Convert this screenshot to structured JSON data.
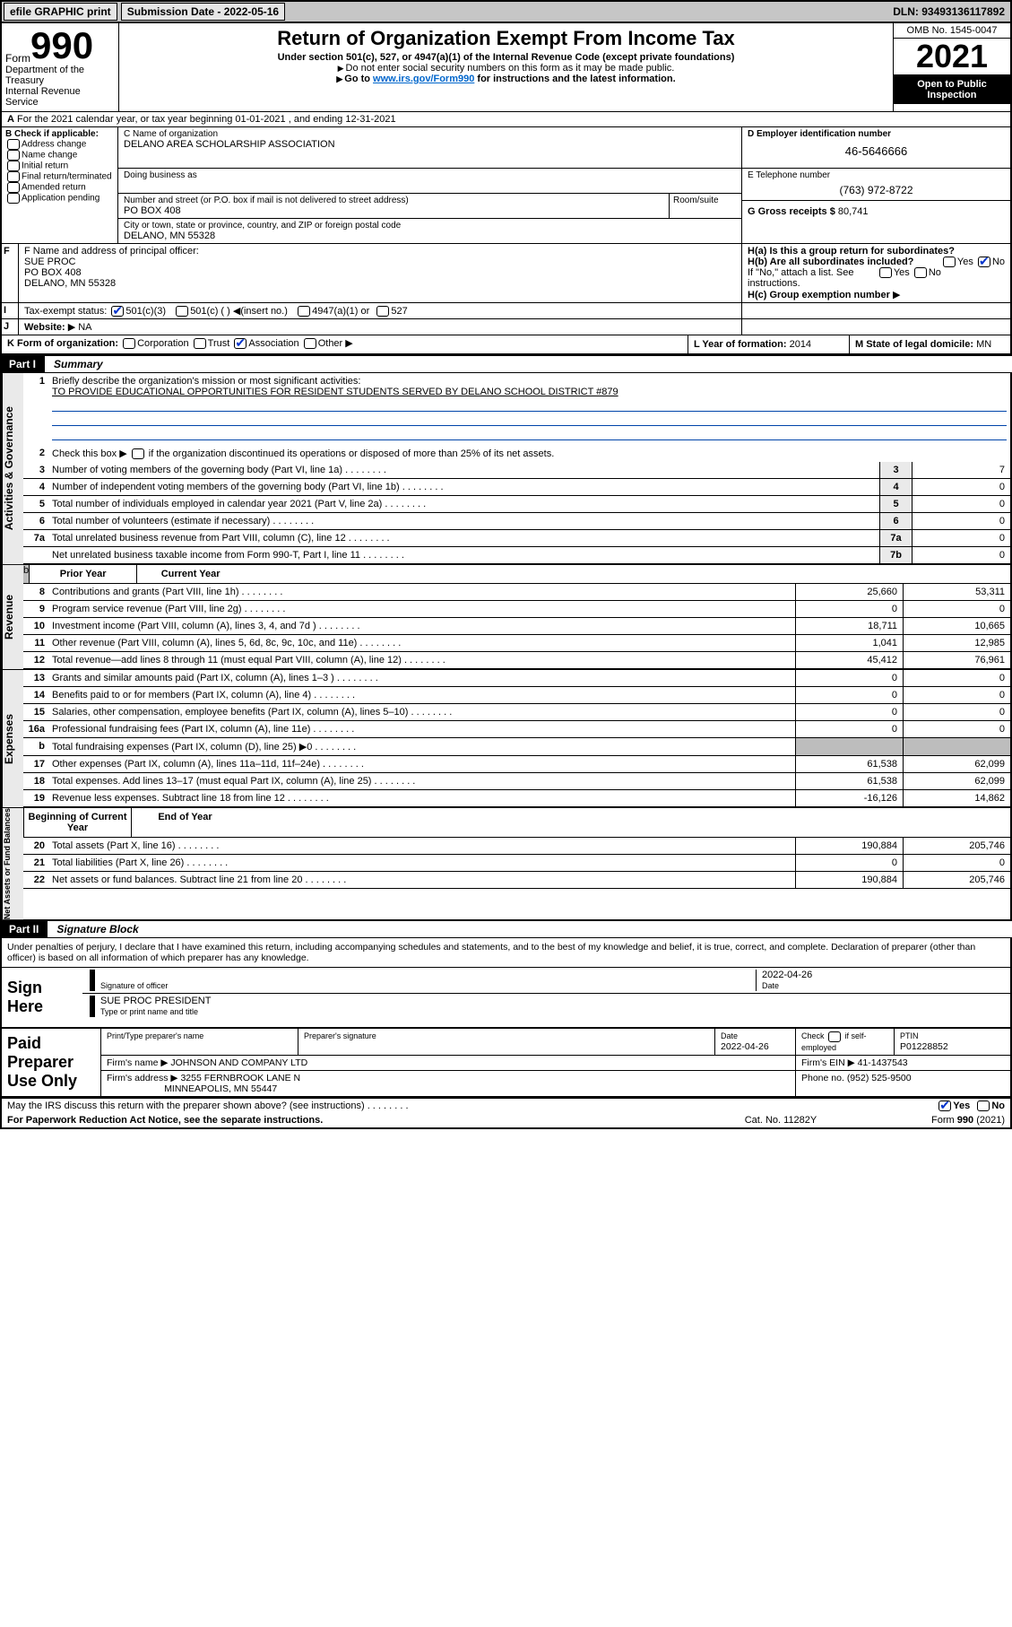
{
  "topbar": {
    "efile": "efile GRAPHIC print",
    "subdate_label": "Submission Date - 2022-05-16",
    "dln": "DLN: 93493136117892"
  },
  "header": {
    "form_label": "Form",
    "form_num": "990",
    "title": "Return of Organization Exempt From Income Tax",
    "sub": "Under section 501(c), 527, or 4947(a)(1) of the Internal Revenue Code (except private foundations)",
    "note1": "Do not enter social security numbers on this form as it may be made public.",
    "note2a": "Go to ",
    "note2_link": "www.irs.gov/Form990",
    "note2b": " for instructions and the latest information.",
    "dept1": "Department of the Treasury",
    "dept2": "Internal Revenue Service",
    "omb": "OMB No. 1545-0047",
    "year": "2021",
    "open": "Open to Public Inspection"
  },
  "A": {
    "text": "For the 2021 calendar year, or tax year beginning 01-01-2021   , and ending 12-31-2021"
  },
  "B": {
    "title": "B Check if applicable:",
    "items": [
      "Address change",
      "Name change",
      "Initial return",
      "Final return/terminated",
      "Amended return",
      "Application pending"
    ]
  },
  "C": {
    "name_label": "C Name of organization",
    "name": "DELANO AREA SCHOLARSHIP ASSOCIATION",
    "dba_label": "Doing business as",
    "street_label": "Number and street (or P.O. box if mail is not delivered to street address)",
    "street": "PO BOX 408",
    "room_label": "Room/suite",
    "city_label": "City or town, state or province, country, and ZIP or foreign postal code",
    "city": "DELANO, MN  55328"
  },
  "D": {
    "label": "D Employer identification number",
    "value": "46-5646666"
  },
  "E": {
    "label": "E Telephone number",
    "value": "(763) 972-8722"
  },
  "G": {
    "label": "G Gross receipts $",
    "value": "80,741"
  },
  "F": {
    "label": "F  Name and address of principal officer:",
    "l1": "SUE PROC",
    "l2": "PO BOX 408",
    "l3": "DELANO, MN  55328"
  },
  "H": {
    "a": "H(a)  Is this a group return for subordinates?",
    "b": "H(b)  Are all subordinates included?",
    "bno": "If \"No,\" attach a list. See instructions.",
    "c": "H(c)  Group exemption number"
  },
  "I": {
    "label": "Tax-exempt status:",
    "o1": "501(c)(3)",
    "o2": "501(c) (   ) ◀(insert no.)",
    "o3": "4947(a)(1) or",
    "o4": "527"
  },
  "J": {
    "label": "Website:",
    "value": "NA"
  },
  "K": {
    "label": "K Form of organization:",
    "o1": "Corporation",
    "o2": "Trust",
    "o3": "Association",
    "o4": "Other"
  },
  "L": {
    "label": "L Year of formation:",
    "value": "2014"
  },
  "M": {
    "label": "M State of legal domicile:",
    "value": "MN"
  },
  "part1": {
    "num": "Part I",
    "title": "Summary"
  },
  "q1": {
    "label": "Briefly describe the organization's mission or most significant activities:",
    "text": "TO PROVIDE EDUCATIONAL OPPORTUNITIES FOR RESIDENT STUDENTS SERVED BY DELANO SCHOOL DISTRICT #879"
  },
  "q2": "Check this box ▶        if the organization discontinued its operations or disposed of more than 25% of its net assets.",
  "rows_gov": [
    {
      "n": "3",
      "t": "Number of voting members of the governing body (Part VI, line 1a)",
      "b": "3",
      "v": "7"
    },
    {
      "n": "4",
      "t": "Number of independent voting members of the governing body (Part VI, line 1b)",
      "b": "4",
      "v": "0"
    },
    {
      "n": "5",
      "t": "Total number of individuals employed in calendar year 2021 (Part V, line 2a)",
      "b": "5",
      "v": "0"
    },
    {
      "n": "6",
      "t": "Total number of volunteers (estimate if necessary)",
      "b": "6",
      "v": "0"
    },
    {
      "n": "7a",
      "t": "Total unrelated business revenue from Part VIII, column (C), line 12",
      "b": "7a",
      "v": "0"
    },
    {
      "n": "",
      "t": "Net unrelated business taxable income from Form 990-T, Part I, line 11",
      "b": "7b",
      "v": "0"
    }
  ],
  "hdr_cols": {
    "prior": "Prior Year",
    "curr": "Current Year",
    "boy": "Beginning of Current Year",
    "eoy": "End of Year"
  },
  "rows_rev": [
    {
      "n": "8",
      "t": "Contributions and grants (Part VIII, line 1h)",
      "p": "25,660",
      "c": "53,311"
    },
    {
      "n": "9",
      "t": "Program service revenue (Part VIII, line 2g)",
      "p": "0",
      "c": "0"
    },
    {
      "n": "10",
      "t": "Investment income (Part VIII, column (A), lines 3, 4, and 7d )",
      "p": "18,711",
      "c": "10,665"
    },
    {
      "n": "11",
      "t": "Other revenue (Part VIII, column (A), lines 5, 6d, 8c, 9c, 10c, and 11e)",
      "p": "1,041",
      "c": "12,985"
    },
    {
      "n": "12",
      "t": "Total revenue—add lines 8 through 11 (must equal Part VIII, column (A), line 12)",
      "p": "45,412",
      "c": "76,961"
    }
  ],
  "rows_exp": [
    {
      "n": "13",
      "t": "Grants and similar amounts paid (Part IX, column (A), lines 1–3 )",
      "p": "0",
      "c": "0"
    },
    {
      "n": "14",
      "t": "Benefits paid to or for members (Part IX, column (A), line 4)",
      "p": "0",
      "c": "0"
    },
    {
      "n": "15",
      "t": "Salaries, other compensation, employee benefits (Part IX, column (A), lines 5–10)",
      "p": "0",
      "c": "0"
    },
    {
      "n": "16a",
      "t": "Professional fundraising fees (Part IX, column (A), line 11e)",
      "p": "0",
      "c": "0"
    },
    {
      "n": "b",
      "t": "Total fundraising expenses (Part IX, column (D), line 25) ▶0",
      "p": "",
      "c": "",
      "shade": true
    },
    {
      "n": "17",
      "t": "Other expenses (Part IX, column (A), lines 11a–11d, 11f–24e)",
      "p": "61,538",
      "c": "62,099"
    },
    {
      "n": "18",
      "t": "Total expenses. Add lines 13–17 (must equal Part IX, column (A), line 25)",
      "p": "61,538",
      "c": "62,099"
    },
    {
      "n": "19",
      "t": "Revenue less expenses. Subtract line 18 from line 12",
      "p": "-16,126",
      "c": "14,862"
    }
  ],
  "rows_net": [
    {
      "n": "20",
      "t": "Total assets (Part X, line 16)",
      "p": "190,884",
      "c": "205,746"
    },
    {
      "n": "21",
      "t": "Total liabilities (Part X, line 26)",
      "p": "0",
      "c": "0"
    },
    {
      "n": "22",
      "t": "Net assets or fund balances. Subtract line 21 from line 20",
      "p": "190,884",
      "c": "205,746"
    }
  ],
  "vtabs": {
    "gov": "Activities & Governance",
    "rev": "Revenue",
    "exp": "Expenses",
    "net": "Net Assets or Fund Balances"
  },
  "part2": {
    "num": "Part II",
    "title": "Signature Block"
  },
  "decl": "Under penalties of perjury, I declare that I have examined this return, including accompanying schedules and statements, and to the best of my knowledge and belief, it is true, correct, and complete. Declaration of preparer (other than officer) is based on all information of which preparer has any knowledge.",
  "sign": {
    "label": "Sign Here",
    "date": "2022-04-26",
    "sig_lbl": "Signature of officer",
    "date_lbl": "Date",
    "name": "SUE PROC  PRESIDENT",
    "name_lbl": "Type or print name and title"
  },
  "paid": {
    "label": "Paid Preparer Use Only",
    "h1": "Print/Type preparer's name",
    "h2": "Preparer's signature",
    "h3": "Date",
    "date": "2022-04-26",
    "h4": "Check         if self-employed",
    "h5": "PTIN",
    "ptin": "P01228852",
    "firm_lbl": "Firm's name   ▶",
    "firm": "JOHNSON AND COMPANY LTD",
    "ein_lbl": "Firm's EIN ▶",
    "ein": "41-1437543",
    "addr_lbl": "Firm's address ▶",
    "addr1": "3255 FERNBROOK LANE N",
    "addr2": "MINNEAPOLIS, MN  55447",
    "phone_lbl": "Phone no.",
    "phone": "(952) 525-9500"
  },
  "may": "May the IRS discuss this return with the preparer shown above? (see instructions)",
  "footer": {
    "l": "For Paperwork Reduction Act Notice, see the separate instructions.",
    "c": "Cat. No. 11282Y",
    "r": "Form 990 (2021)"
  },
  "yn": {
    "yes": "Yes",
    "no": "No"
  }
}
